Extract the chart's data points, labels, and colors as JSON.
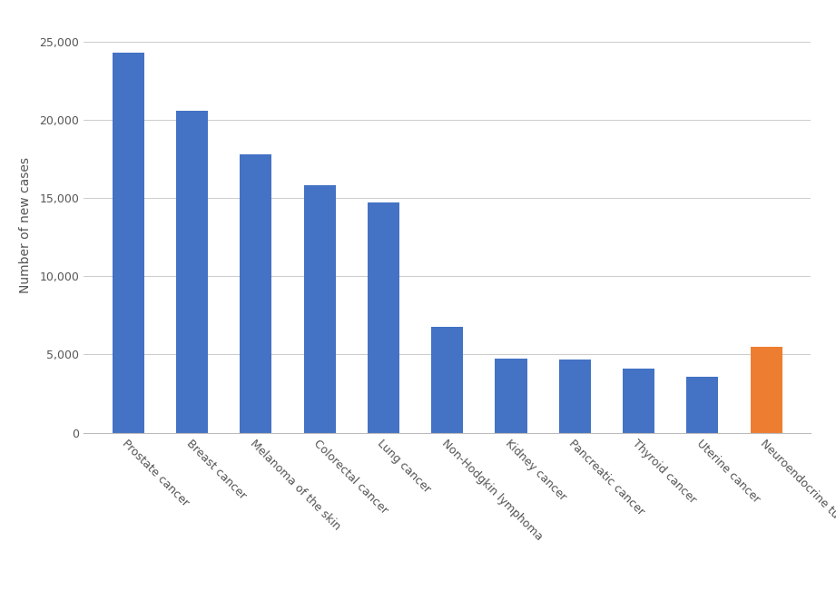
{
  "categories": [
    "Prostate cancer",
    "Breast cancer",
    "Melanoma of the skin",
    "Colorectal cancer",
    "Lung cancer",
    "Non-Hodgkin lymphoma",
    "Kidney cancer",
    "Pancreatic cancer",
    "Thyroid cancer",
    "Uterine cancer",
    "Neuroendocrine tumours"
  ],
  "values": [
    24300,
    20600,
    17800,
    15800,
    14700,
    6750,
    4750,
    4700,
    4100,
    3550,
    5500
  ],
  "bar_colors": [
    "#4472C4",
    "#4472C4",
    "#4472C4",
    "#4472C4",
    "#4472C4",
    "#4472C4",
    "#4472C4",
    "#4472C4",
    "#4472C4",
    "#4472C4",
    "#ED7D31"
  ],
  "ylabel": "Number of new cases",
  "ylim": [
    0,
    26500
  ],
  "yticks": [
    0,
    5000,
    10000,
    15000,
    20000,
    25000
  ],
  "ytick_labels": [
    "0",
    "5,000",
    "10,000",
    "15,000",
    "20,000",
    "25,000"
  ],
  "background_color": "#FFFFFF",
  "grid_color": "#CCCCCC",
  "bar_width": 0.5,
  "ylabel_fontsize": 10,
  "tick_fontsize": 9,
  "label_color": "#555555"
}
